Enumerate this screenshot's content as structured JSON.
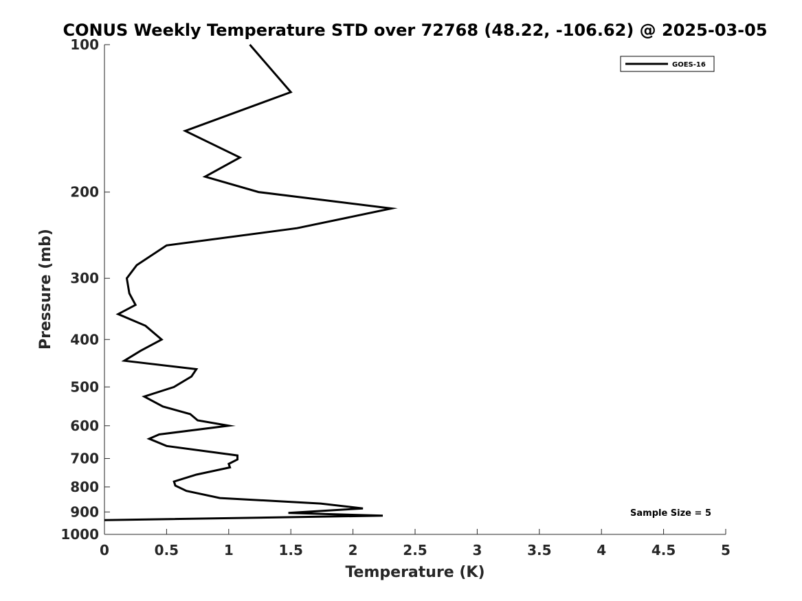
{
  "chart_data": {
    "type": "line",
    "title": "CONUS Weekly Temperature STD over 72768 (48.22, -106.62) @ 2025-03-05",
    "xlabel": "Temperature (K)",
    "ylabel": "Pressure (mb)",
    "xlim": [
      0,
      5
    ],
    "ylim": [
      100,
      1000
    ],
    "y_scale": "log",
    "y_reversed": true,
    "grid": false,
    "legend_position": "top-right",
    "x_ticks": [
      "0",
      "0.5",
      "1",
      "1.5",
      "2",
      "2.5",
      "3",
      "3.5",
      "4",
      "4.5",
      "5"
    ],
    "y_ticks": [
      "100",
      "200",
      "300",
      "400",
      "500",
      "600",
      "700",
      "800",
      "900",
      "1000"
    ],
    "series": [
      {
        "name": "GOES-16",
        "color": "#000000",
        "points": [
          [
            1.17,
            100
          ],
          [
            1.5,
            125
          ],
          [
            0.65,
            150
          ],
          [
            1.09,
            170
          ],
          [
            0.81,
            186
          ],
          [
            1.24,
            200
          ],
          [
            2.31,
            216
          ],
          [
            1.55,
            237
          ],
          [
            0.5,
            257
          ],
          [
            0.26,
            282
          ],
          [
            0.18,
            300
          ],
          [
            0.2,
            322
          ],
          [
            0.25,
            340
          ],
          [
            0.11,
            355
          ],
          [
            0.33,
            375
          ],
          [
            0.46,
            400
          ],
          [
            0.29,
            422
          ],
          [
            0.16,
            442
          ],
          [
            0.74,
            460
          ],
          [
            0.7,
            476
          ],
          [
            0.56,
            500
          ],
          [
            0.32,
            523
          ],
          [
            0.47,
            548
          ],
          [
            0.69,
            568
          ],
          [
            0.75,
            585
          ],
          [
            1.0,
            600
          ],
          [
            0.44,
            625
          ],
          [
            0.36,
            638
          ],
          [
            0.5,
            660
          ],
          [
            1.07,
            690
          ],
          [
            1.07,
            703
          ],
          [
            1.0,
            718
          ],
          [
            1.01,
            730
          ],
          [
            0.74,
            755
          ],
          [
            0.56,
            780
          ],
          [
            0.57,
            795
          ],
          [
            0.66,
            815
          ],
          [
            0.93,
            843
          ],
          [
            1.74,
            865
          ],
          [
            2.08,
            885
          ],
          [
            1.48,
            904
          ],
          [
            2.24,
            916
          ],
          [
            0.0,
            935
          ]
        ]
      }
    ],
    "annotations": [
      "Sample Size = 5"
    ]
  }
}
